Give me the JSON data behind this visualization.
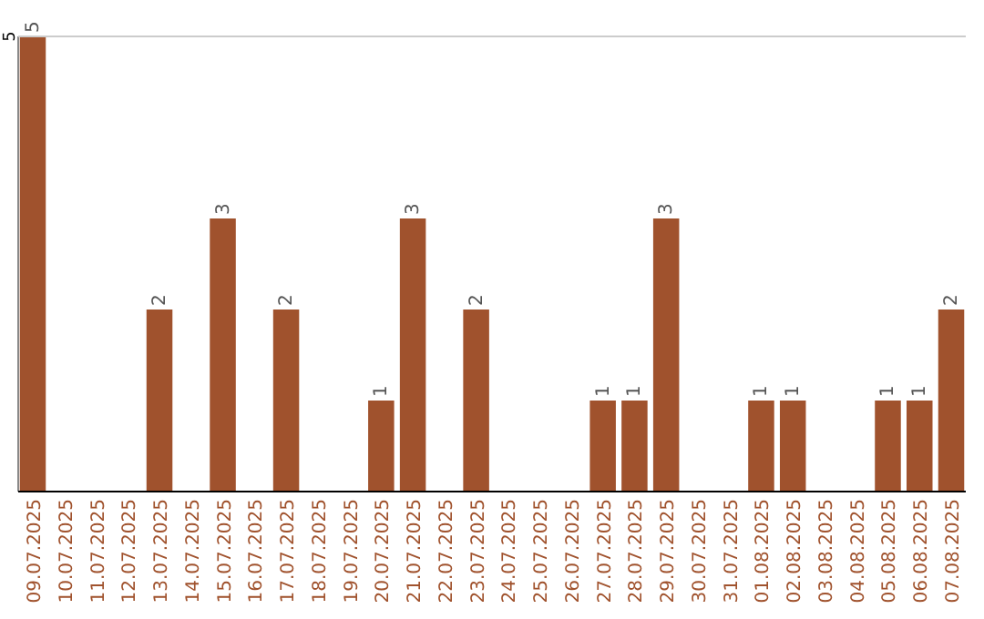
{
  "chart_data": {
    "type": "bar",
    "categories": [
      "09.07.2025",
      "10.07.2025",
      "11.07.2025",
      "12.07.2025",
      "13.07.2025",
      "14.07.2025",
      "15.07.2025",
      "16.07.2025",
      "17.07.2025",
      "18.07.2025",
      "19.07.2025",
      "20.07.2025",
      "21.07.2025",
      "22.07.2025",
      "23.07.2025",
      "24.07.2025",
      "25.07.2025",
      "26.07.2025",
      "27.07.2025",
      "28.07.2025",
      "29.07.2025",
      "30.07.2025",
      "31.07.2025",
      "01.08.2025",
      "02.08.2025",
      "03.08.2025",
      "04.08.2025",
      "05.08.2025",
      "06.08.2025",
      "07.08.2025"
    ],
    "values": [
      5,
      0,
      0,
      0,
      2,
      0,
      3,
      0,
      2,
      0,
      0,
      1,
      3,
      0,
      2,
      0,
      0,
      0,
      1,
      1,
      3,
      0,
      0,
      1,
      1,
      0,
      0,
      1,
      1,
      2
    ],
    "value_labels": [
      "5",
      null,
      null,
      null,
      "2",
      null,
      "3",
      null,
      "2",
      null,
      null,
      "1",
      "3",
      null,
      "2",
      null,
      null,
      null,
      "1",
      "1",
      "3",
      null,
      null,
      "1",
      "1",
      null,
      null,
      "1",
      "1",
      "2"
    ],
    "color": "#a0522d",
    "ylim": [
      0,
      5
    ],
    "yticks": [
      5
    ]
  }
}
